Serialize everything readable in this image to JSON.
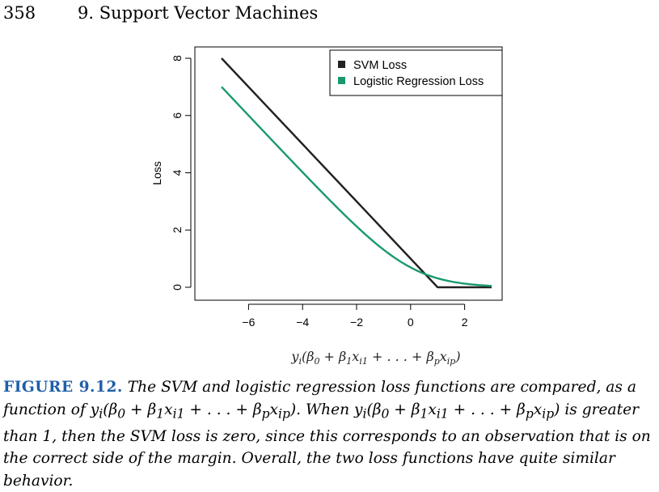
{
  "header": {
    "page_number": "358",
    "chapter_title": "9. Support Vector Machines"
  },
  "chart_data": {
    "type": "line",
    "xlabel": "y_i(β_0 + β_1x_{i1} + ... + β_px_{ip})",
    "ylabel": "Loss",
    "xlim": [
      -7,
      3
    ],
    "ylim": [
      0,
      8
    ],
    "xticks": [
      -6,
      -4,
      -2,
      0,
      2
    ],
    "xtick_labels": [
      "−6",
      "−4",
      "−2",
      "0",
      "2"
    ],
    "yticks": [
      0,
      2,
      4,
      6,
      8
    ],
    "ytick_labels": [
      "0",
      "2",
      "4",
      "6",
      "8"
    ],
    "legend_position": "top-right",
    "series": [
      {
        "name": "SVM Loss",
        "color": "#222222",
        "x": [
          -7,
          -6,
          -5,
          -4,
          -3,
          -2,
          -1,
          0,
          1,
          2,
          3
        ],
        "y": [
          8,
          7,
          6,
          5,
          4,
          3,
          2,
          1,
          0,
          0,
          0
        ]
      },
      {
        "name": "Logistic Regression Loss",
        "color": "#1a9a6c",
        "x": [
          -7,
          -6,
          -5,
          -4,
          -3,
          -2,
          -1,
          0,
          1,
          2,
          3
        ],
        "y": [
          7.0,
          6.0,
          5.01,
          4.02,
          3.05,
          2.13,
          1.31,
          0.69,
          0.31,
          0.13,
          0.05
        ]
      }
    ]
  },
  "figure_label": "FIGURE 9.12.",
  "caption": {
    "part1": "The SVM and logistic regression loss functions are compared, as a function of ",
    "formula1": "y_i(β_0 + β_1x_{i1} + ... + β_px_{ip})",
    "part2": ". When ",
    "formula2": "y_i(β_0 + β_1x_{i1} + ... + β_px_{ip})",
    "part3": " is greater than 1, then the SVM loss is zero, since this corresponds to an observation that is on the correct side of the margin. Overall, the two loss functions have quite similar behavior."
  }
}
